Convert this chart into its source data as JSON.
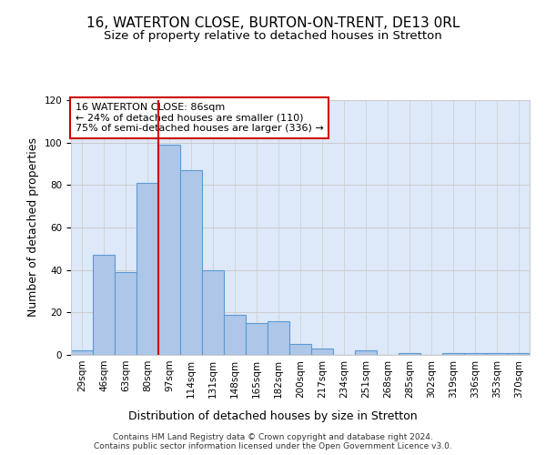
{
  "title": "16, WATERTON CLOSE, BURTON-ON-TRENT, DE13 0RL",
  "subtitle": "Size of property relative to detached houses in Stretton",
  "xlabel": "Distribution of detached houses by size in Stretton",
  "ylabel": "Number of detached properties",
  "categories": [
    "29sqm",
    "46sqm",
    "63sqm",
    "80sqm",
    "97sqm",
    "114sqm",
    "131sqm",
    "148sqm",
    "165sqm",
    "182sqm",
    "200sqm",
    "217sqm",
    "234sqm",
    "251sqm",
    "268sqm",
    "285sqm",
    "302sqm",
    "319sqm",
    "336sqm",
    "353sqm",
    "370sqm"
  ],
  "values": [
    2,
    47,
    39,
    81,
    99,
    87,
    40,
    19,
    15,
    16,
    5,
    3,
    0,
    2,
    0,
    1,
    0,
    1,
    1,
    1,
    1
  ],
  "bar_color": "#aec6e8",
  "bar_edge_color": "#5b9bd5",
  "annotation_text": "16 WATERTON CLOSE: 86sqm\n← 24% of detached houses are smaller (110)\n75% of semi-detached houses are larger (336) →",
  "annotation_box_color": "#ffffff",
  "annotation_box_edge": "#cc0000",
  "ylim": [
    0,
    120
  ],
  "grid_color": "#cccccc",
  "background_color": "#dde8f8",
  "footer_text": "Contains HM Land Registry data © Crown copyright and database right 2024.\nContains public sector information licensed under the Open Government Licence v3.0.",
  "title_fontsize": 11,
  "subtitle_fontsize": 9.5,
  "ylabel_fontsize": 9,
  "xlabel_fontsize": 9,
  "tick_fontsize": 7.5,
  "annotation_fontsize": 8,
  "footer_fontsize": 6.5
}
